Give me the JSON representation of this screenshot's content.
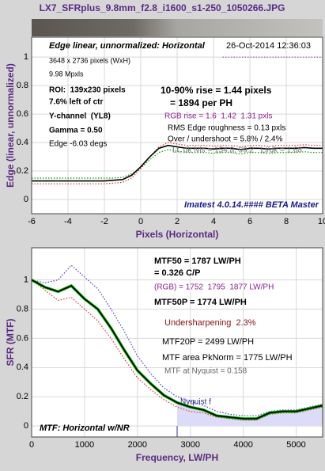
{
  "title": "LX7_SFRplus_9.8mm_f2.8_i1600_s1-250_1050266.JPG",
  "chart_data": [
    {
      "type": "line",
      "ylabel": "Edge (linear, unnormalized)",
      "xlabel": "Pixels (Horizontal)",
      "xlim": [
        -6,
        10
      ],
      "xticks": [
        -6,
        -4,
        -2,
        0,
        2,
        4,
        6,
        8,
        10
      ],
      "ylim": [
        -0.1,
        1.14
      ],
      "yticks": [
        0,
        0.2,
        0.4,
        0.6,
        0.8,
        1
      ],
      "grid": true,
      "x": [
        -6,
        -5.5,
        -5,
        -4.5,
        -4,
        -3.5,
        -3,
        -2.5,
        -2,
        -1.5,
        -1,
        -0.5,
        0,
        0.5,
        1,
        1.5,
        2,
        2.5,
        3,
        3.5,
        4,
        4.5,
        5,
        5.5,
        6,
        6.5,
        7,
        7.5,
        8,
        8.5,
        9,
        9.5,
        10
      ],
      "series": [
        {
          "color": "#00a000",
          "dashed": true,
          "values": [
            0.15,
            0.15,
            0.15,
            0.15,
            0.15,
            0.15,
            0.15,
            0.15,
            0.15,
            0.15,
            0.155,
            0.18,
            0.22,
            0.28,
            0.33,
            0.35,
            0.34,
            0.33,
            0.33,
            0.33,
            0.325,
            0.33,
            0.33,
            0.32,
            0.33,
            0.33,
            0.325,
            0.33,
            0.33,
            0.33,
            0.335,
            0.33,
            0.33
          ]
        },
        {
          "color": "#e03030",
          "dashed": true,
          "values": [
            0.11,
            0.11,
            0.11,
            0.11,
            0.11,
            0.11,
            0.11,
            0.11,
            0.11,
            0.115,
            0.12,
            0.15,
            0.22,
            0.3,
            0.37,
            0.4,
            0.39,
            0.38,
            0.38,
            0.38,
            0.375,
            0.38,
            0.38,
            0.37,
            0.38,
            0.38,
            0.375,
            0.38,
            0.38,
            0.38,
            0.385,
            0.38,
            0.38
          ]
        },
        {
          "color": "#000000",
          "dashed": false,
          "values": [
            0.13,
            0.13,
            0.13,
            0.13,
            0.13,
            0.13,
            0.13,
            0.13,
            0.13,
            0.135,
            0.14,
            0.17,
            0.23,
            0.3,
            0.36,
            0.38,
            0.37,
            0.36,
            0.36,
            0.36,
            0.355,
            0.36,
            0.36,
            0.35,
            0.36,
            0.36,
            0.355,
            0.36,
            0.36,
            0.36,
            0.365,
            0.36,
            0.36
          ]
        },
        {
          "color": "#a040c0",
          "dashed": true,
          "values": [
            null,
            null,
            null,
            null,
            null,
            null,
            null,
            null,
            null,
            null,
            null,
            null,
            null,
            null,
            null,
            null,
            null,
            null,
            null,
            null,
            null,
            1,
            1,
            1,
            1,
            1,
            1,
            1,
            1,
            1,
            1,
            1,
            1
          ]
        }
      ],
      "annotations": [
        "Edge linear, unnormalized: Horizontal",
        "26-Oct-2014 12:36:03",
        "3648 x 2736 pixels (WxH)",
        "9.98 Mpxls",
        "ROI:  139x230 pixels",
        "7.6% left of ctr",
        "Y-channel  (YL8)",
        "Gamma = 0.50",
        "Edge -6.03 degs",
        "10-90% rise = 1.44 pixels",
        "= 1894 per PH",
        "RGB rise = 1.6  1.42  1.31 pxls",
        "RMS Edge roughness = 0.13 pxls",
        "Over / undershoot = 5.8% / 2.4%",
        "Lt, dk lvls = 154.8, 99.2   Lt/dk = 1.68",
        "Imatest 4.0.14.#### BETA Master"
      ]
    },
    {
      "type": "line",
      "ylabel": "SFR (MTF)",
      "xlabel": "Frequency, LW/PH",
      "xlim": [
        0,
        5500
      ],
      "xticks": [
        0,
        1000,
        2000,
        3000,
        4000,
        5000
      ],
      "ylim": [
        -0.075,
        1.22
      ],
      "yticks": [
        0,
        0.2,
        0.4,
        0.6,
        0.8,
        1
      ],
      "grid": true,
      "nyquist": 2750,
      "nyquist_label": "Nyquist f",
      "x": [
        0,
        250,
        500,
        750,
        1000,
        1250,
        1500,
        1750,
        2000,
        2250,
        2500,
        2750,
        3000,
        3250,
        3500,
        3750,
        4000,
        4250,
        4500,
        4750,
        5000,
        5250,
        5500
      ],
      "series": [
        {
          "color": "#4040d0",
          "dashed": true,
          "values": [
            1,
            0.98,
            1,
            1.1,
            1.02,
            0.94,
            0.8,
            0.65,
            0.48,
            0.36,
            0.26,
            0.2,
            0.17,
            0.14,
            0.1,
            0.08,
            0.07,
            0.07,
            0.1,
            0.11,
            0.11,
            0.13,
            0.15
          ]
        },
        {
          "color": "#e03030",
          "dashed": true,
          "values": [
            1,
            0.93,
            0.86,
            0.88,
            0.8,
            0.72,
            0.6,
            0.46,
            0.33,
            0.25,
            0.18,
            0.13,
            0.1,
            0.09,
            0.06,
            0.05,
            0.04,
            0.04,
            0.08,
            0.09,
            0.09,
            0.11,
            0.13
          ]
        },
        {
          "color": "#00b000",
          "dashed": false,
          "width": 3.5,
          "values": [
            1,
            0.95,
            0.92,
            0.96,
            0.87,
            0.8,
            0.67,
            0.52,
            0.38,
            0.29,
            0.21,
            0.16,
            0.13,
            0.11,
            0.07,
            0.06,
            0.05,
            0.05,
            0.09,
            0.1,
            0.1,
            0.12,
            0.14
          ]
        },
        {
          "color": "#000000",
          "dashed": false,
          "values": [
            1,
            0.95,
            0.92,
            0.96,
            0.87,
            0.8,
            0.67,
            0.52,
            0.38,
            0.29,
            0.21,
            0.16,
            0.13,
            0.11,
            0.07,
            0.06,
            0.05,
            0.05,
            0.09,
            0.1,
            0.1,
            0.12,
            0.14
          ]
        }
      ],
      "annotations": [
        "MTF50 = 1787 LW/PH",
        "= 0.326 C/P",
        "(RGB) = 1752  1795  1877 LW/PH",
        "MTF50P = 1774 LW/PH",
        "Undersharpening  2.3%",
        "MTF20P = 2499 LW/PH",
        "MTF area PkNorm = 1775 LW/PH",
        "MTF at Nyquist = 0.158",
        "MTF: Horizontal w/NR"
      ]
    }
  ]
}
